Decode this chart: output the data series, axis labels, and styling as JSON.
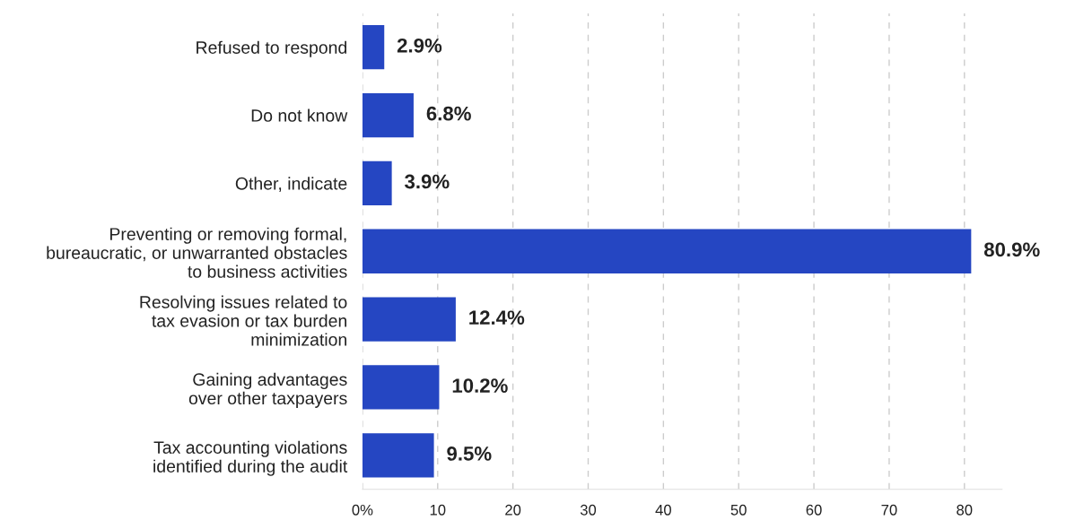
{
  "chart_data": {
    "type": "bar",
    "orientation": "horizontal",
    "categories": [
      "Refused to respond",
      "Do not know",
      "Other, indicate",
      "Preventing or removing formal,\nbureaucratic, or unwarranted obstacles\nto business activities",
      "Resolving issues related to\ntax evasion or tax burden\nminimization",
      "Gaining advantages\nover other taxpayers",
      "Tax accounting violations\nidentified during the audit"
    ],
    "values": [
      2.9,
      6.8,
      3.9,
      80.9,
      12.4,
      10.2,
      9.5
    ],
    "value_labels": [
      "2.9%",
      "6.8%",
      "3.9%",
      "80.9%",
      "12.4%",
      "10.2%",
      "9.5%"
    ],
    "color": "#2546c2",
    "xlim": [
      0,
      85
    ],
    "xticks": [
      {
        "value": 0,
        "label": "0%"
      },
      10,
      20,
      30,
      40,
      50,
      60,
      70,
      80
    ],
    "grid": "x"
  }
}
